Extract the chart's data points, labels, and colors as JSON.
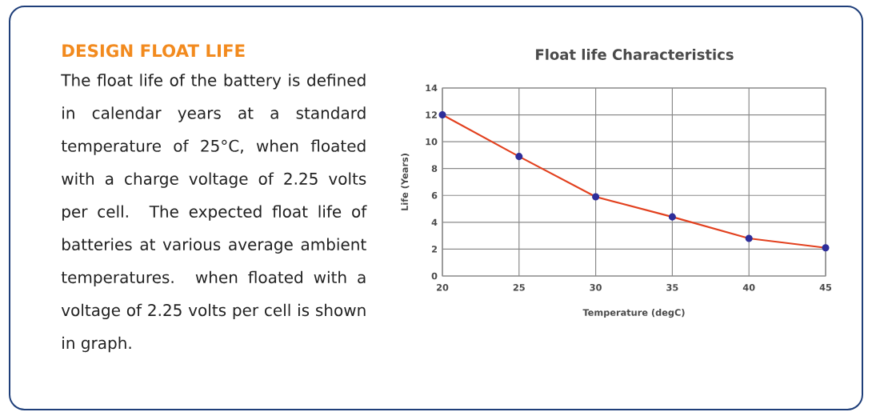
{
  "chart_data": [
    {
      "type": "other",
      "title": "DESIGN FLOAT LIFE",
      "annotations": [
        "The float life of the battery is defined in calendar years at a standard temperature of 25°C, when floated with a charge voltage of 2.25 volts per cell. The expected float life of batteries at various average ambient temperatures. when floated with a voltage of 2.25 volts per cell is shown in graph."
      ]
    },
    {
      "type": "line",
      "title": "Float life Characteristics",
      "xlabel": "Temperature (degC)",
      "ylabel": "Life (Years)",
      "x": [
        20,
        25,
        30,
        35,
        40,
        45
      ],
      "values": [
        12,
        8.9,
        5.9,
        4.4,
        2.8,
        2.1
      ],
      "color": "#e2401e",
      "xlim": [
        20,
        45
      ],
      "xticks": [
        20,
        25,
        30,
        35,
        40,
        45
      ],
      "ylim": [
        0,
        14
      ],
      "yticks": [
        0,
        2,
        4,
        6,
        8,
        10,
        12,
        14
      ],
      "grid": true,
      "marker": "circle",
      "line_style": "solid"
    }
  ]
}
